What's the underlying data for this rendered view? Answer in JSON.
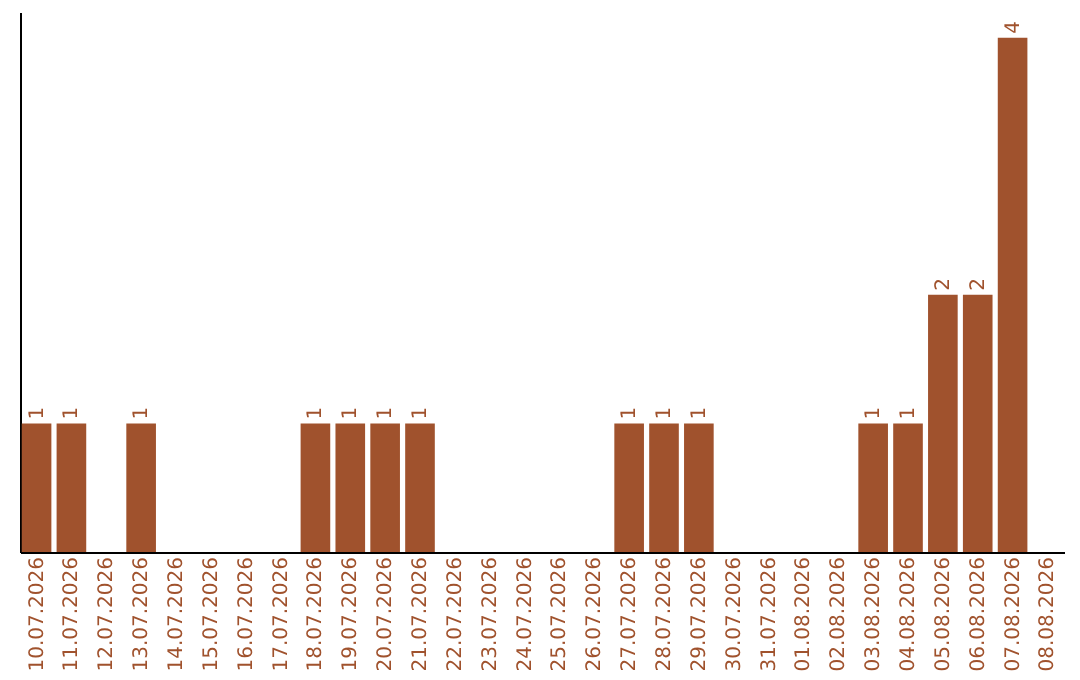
{
  "chart_data": {
    "type": "bar",
    "categories": [
      "10.07.2026",
      "11.07.2026",
      "12.07.2026",
      "13.07.2026",
      "14.07.2026",
      "15.07.2026",
      "16.07.2026",
      "17.07.2026",
      "18.07.2026",
      "19.07.2026",
      "20.07.2026",
      "21.07.2026",
      "22.07.2026",
      "23.07.2026",
      "24.07.2026",
      "25.07.2026",
      "26.07.2026",
      "27.07.2026",
      "28.07.2026",
      "29.07.2026",
      "30.07.2026",
      "31.07.2026",
      "01.08.2026",
      "02.08.2026",
      "03.08.2026",
      "04.08.2026",
      "05.08.2026",
      "06.08.2026",
      "07.08.2026",
      "08.08.2026"
    ],
    "values": [
      1,
      1,
      0,
      1,
      0,
      0,
      0,
      0,
      1,
      1,
      1,
      1,
      0,
      0,
      0,
      0,
      0,
      1,
      1,
      1,
      0,
      0,
      0,
      0,
      1,
      1,
      2,
      2,
      4,
      0
    ],
    "value_labels": [
      "1",
      "1",
      null,
      "1",
      null,
      null,
      null,
      null,
      "1",
      "1",
      "1",
      "1",
      null,
      null,
      null,
      null,
      null,
      "1",
      "1",
      "1",
      null,
      null,
      null,
      null,
      "1",
      "1",
      "2",
      "2",
      "4",
      null
    ],
    "color": "#a0522d",
    "ylim": [
      0,
      4.2
    ],
    "tick_labels": "x",
    "grid": false
  }
}
